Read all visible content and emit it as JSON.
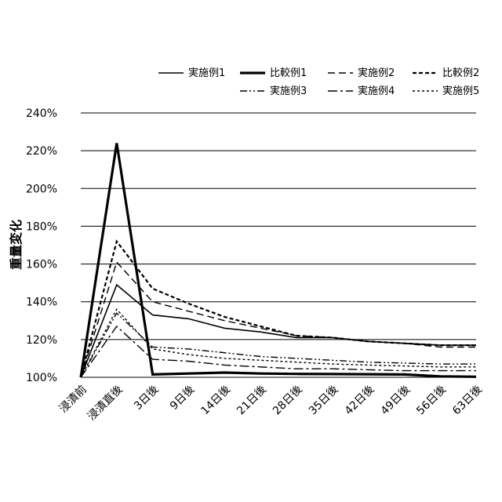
{
  "chart_data": {
    "type": "line",
    "ylabel": "重量変化",
    "categories": [
      "浸漬前",
      "浸漬直後",
      "3日後",
      "9日後",
      "14日後",
      "21日後",
      "28日後",
      "35日後",
      "42日後",
      "49日後",
      "56日後",
      "63日後"
    ],
    "ylim": [
      100,
      240
    ],
    "yticks": [
      "100%",
      "120%",
      "140%",
      "160%",
      "180%",
      "200%",
      "220%",
      "240%"
    ],
    "grid": "horizontal",
    "legend_position": "top-right",
    "series": [
      {
        "name": "実施例1",
        "style": "solid",
        "values": [
          100,
          149,
          133,
          131,
          126,
          124,
          121,
          121,
          119,
          118,
          117,
          117
        ]
      },
      {
        "name": "比較例1",
        "style": "solid-bold",
        "values": [
          100,
          224,
          101.5,
          102,
          102.5,
          102,
          101.8,
          101.7,
          101.6,
          101.5,
          100.5,
          100.3
        ]
      },
      {
        "name": "実施例2",
        "style": "dashed",
        "values": [
          100,
          161,
          140,
          135,
          130,
          126,
          122,
          121,
          119,
          118,
          116,
          116
        ]
      },
      {
        "name": "比較例2",
        "style": "dashed-bold",
        "values": [
          100,
          172,
          147,
          139,
          132,
          127,
          122,
          121,
          119,
          118,
          117,
          117
        ]
      },
      {
        "name": "実施例3",
        "style": "dashdotdot",
        "values": [
          100,
          134,
          116,
          115,
          113,
          111,
          110,
          109,
          108,
          107.5,
          107,
          107
        ]
      },
      {
        "name": "実施例4",
        "style": "dashdot",
        "values": [
          100,
          127,
          109.5,
          108.5,
          106.5,
          105.5,
          104.5,
          104.5,
          104,
          103.5,
          103.5,
          103.5
        ]
      },
      {
        "name": "実施例5",
        "style": "dotted",
        "values": [
          100,
          136,
          115,
          112,
          110,
          109,
          108,
          107,
          106.5,
          106,
          105.5,
          105.5
        ]
      }
    ],
    "colors": {
      "line": "#000000",
      "grid": "#000000",
      "background": "#ffffff"
    }
  }
}
